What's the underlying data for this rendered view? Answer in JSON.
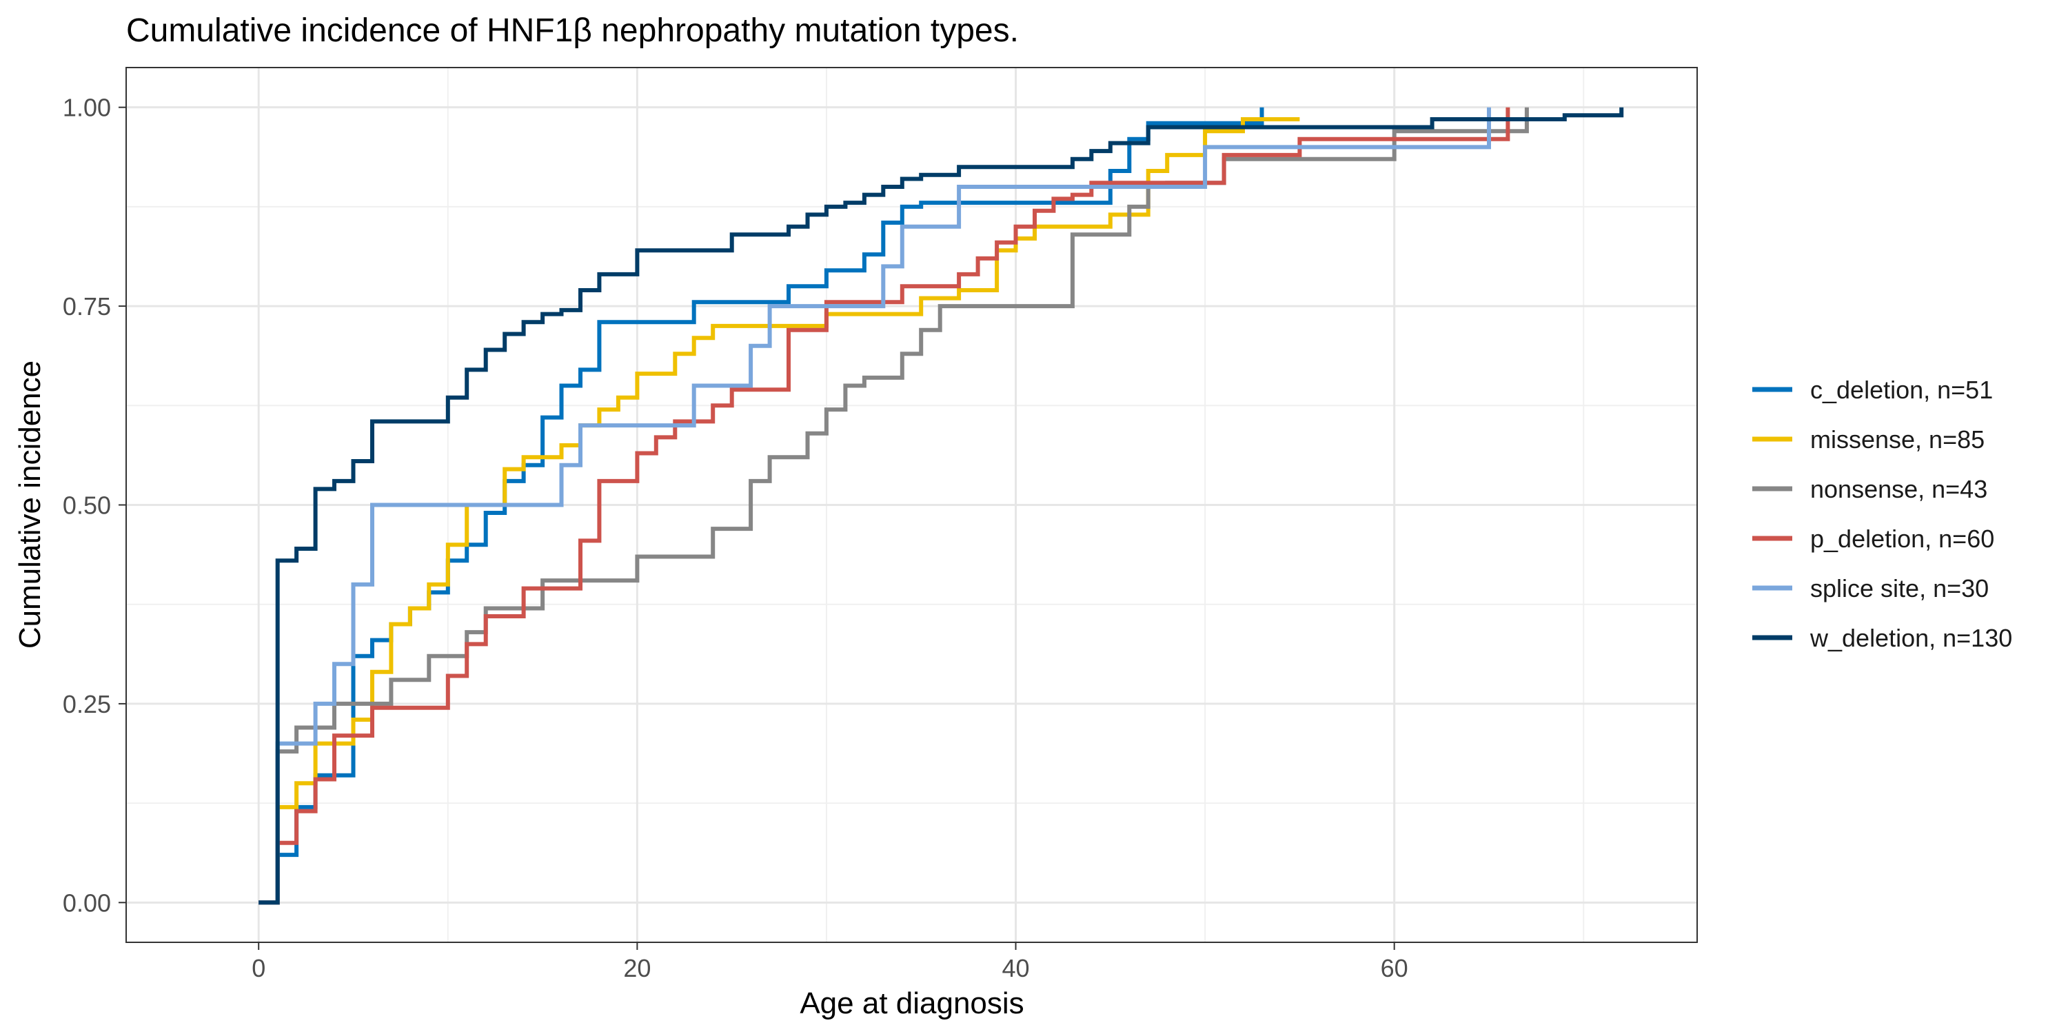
{
  "chart_data": {
    "type": "line",
    "title": "Cumulative incidence of HNF1β nephropathy mutation types.",
    "xlabel": "Age at diagnosis",
    "ylabel": "Cumulative incidence",
    "xlim": [
      -7,
      76
    ],
    "ylim": [
      -0.05,
      1.05
    ],
    "x_ticks": [
      0,
      20,
      40,
      60
    ],
    "x_tick_labels": [
      "0",
      "20",
      "40",
      "60"
    ],
    "y_ticks": [
      0,
      0.25,
      0.5,
      0.75,
      1.0
    ],
    "y_tick_labels": [
      "0.00",
      "0.25",
      "0.50",
      "0.75",
      "1.00"
    ],
    "grid": true,
    "legend_position": "right",
    "series": [
      {
        "name": "c_deletion, n=51",
        "color": "#0072bd",
        "x": [
          0,
          1,
          2,
          3,
          5,
          6,
          7,
          8,
          9,
          10,
          11,
          12,
          13,
          14,
          15,
          16,
          17,
          18,
          23,
          28,
          30,
          32,
          33,
          34,
          35,
          37,
          45,
          46,
          47,
          53
        ],
        "y": [
          0,
          0.06,
          0.12,
          0.16,
          0.31,
          0.33,
          0.35,
          0.37,
          0.39,
          0.43,
          0.45,
          0.49,
          0.53,
          0.55,
          0.61,
          0.65,
          0.67,
          0.73,
          0.755,
          0.775,
          0.795,
          0.815,
          0.855,
          0.875,
          0.88,
          0.88,
          0.92,
          0.96,
          0.98,
          1.0
        ]
      },
      {
        "name": "missense, n=85",
        "color": "#efc000",
        "x": [
          0,
          1,
          2,
          3,
          5,
          6,
          7,
          8,
          9,
          10,
          11,
          12,
          13,
          14,
          16,
          17,
          18,
          19,
          20,
          22,
          23,
          24,
          26,
          27,
          28,
          30,
          35,
          37,
          39,
          40,
          41,
          43,
          45,
          47,
          48,
          49,
          50,
          52,
          53,
          55
        ],
        "y": [
          0,
          0.12,
          0.15,
          0.2,
          0.23,
          0.29,
          0.35,
          0.37,
          0.4,
          0.45,
          0.5,
          0.5,
          0.545,
          0.56,
          0.575,
          0.6,
          0.62,
          0.635,
          0.665,
          0.69,
          0.71,
          0.725,
          0.725,
          0.725,
          0.725,
          0.74,
          0.76,
          0.77,
          0.82,
          0.835,
          0.85,
          0.85,
          0.865,
          0.92,
          0.94,
          0.94,
          0.97,
          0.985,
          0.985,
          0.985
        ]
      },
      {
        "name": "nonsense, n=43",
        "color": "#868686",
        "x": [
          0,
          1,
          2,
          4,
          7,
          9,
          11,
          12,
          14,
          15,
          17,
          20,
          24,
          26,
          27,
          29,
          30,
          31,
          32,
          34,
          35,
          36,
          43,
          46,
          47,
          48,
          51,
          60,
          67
        ],
        "y": [
          0,
          0.19,
          0.22,
          0.25,
          0.28,
          0.31,
          0.34,
          0.37,
          0.37,
          0.405,
          0.405,
          0.435,
          0.47,
          0.53,
          0.56,
          0.59,
          0.62,
          0.65,
          0.66,
          0.69,
          0.72,
          0.75,
          0.84,
          0.875,
          0.9,
          0.905,
          0.935,
          0.97,
          1.0
        ]
      },
      {
        "name": "p_deletion, n=60",
        "color": "#cd534c",
        "x": [
          0,
          1,
          2,
          3,
          4,
          6,
          10,
          11,
          12,
          14,
          16,
          17,
          18,
          20,
          21,
          22,
          23,
          24,
          25,
          28,
          30,
          34,
          37,
          38,
          39,
          40,
          41,
          42,
          43,
          44,
          47,
          51,
          55,
          66
        ],
        "y": [
          0,
          0.075,
          0.115,
          0.155,
          0.21,
          0.245,
          0.285,
          0.325,
          0.36,
          0.395,
          0.395,
          0.455,
          0.53,
          0.565,
          0.585,
          0.605,
          0.605,
          0.625,
          0.645,
          0.72,
          0.755,
          0.775,
          0.79,
          0.81,
          0.83,
          0.85,
          0.87,
          0.885,
          0.89,
          0.905,
          0.905,
          0.94,
          0.96,
          1.0
        ]
      },
      {
        "name": "splice site, n=30",
        "color": "#7aa6dc",
        "x": [
          0,
          1,
          3,
          4,
          5,
          6,
          16,
          17,
          23,
          26,
          27,
          33,
          34,
          37,
          50,
          65
        ],
        "y": [
          0,
          0.2,
          0.25,
          0.3,
          0.4,
          0.5,
          0.55,
          0.6,
          0.65,
          0.7,
          0.75,
          0.8,
          0.85,
          0.9,
          0.95,
          1.0
        ]
      },
      {
        "name": "w_deletion, n=130",
        "color": "#003c67",
        "x": [
          0,
          1,
          2,
          3,
          4,
          5,
          6,
          10,
          11,
          12,
          13,
          14,
          15,
          16,
          17,
          18,
          20,
          25,
          28,
          29,
          30,
          31,
          32,
          33,
          34,
          35,
          37,
          43,
          44,
          45,
          47,
          53,
          62,
          69,
          72
        ],
        "y": [
          0,
          0.43,
          0.445,
          0.52,
          0.53,
          0.555,
          0.605,
          0.635,
          0.67,
          0.695,
          0.715,
          0.73,
          0.74,
          0.745,
          0.77,
          0.79,
          0.82,
          0.84,
          0.85,
          0.865,
          0.875,
          0.88,
          0.89,
          0.9,
          0.91,
          0.915,
          0.925,
          0.935,
          0.945,
          0.955,
          0.975,
          0.975,
          0.985,
          0.99,
          1.0
        ]
      }
    ]
  }
}
